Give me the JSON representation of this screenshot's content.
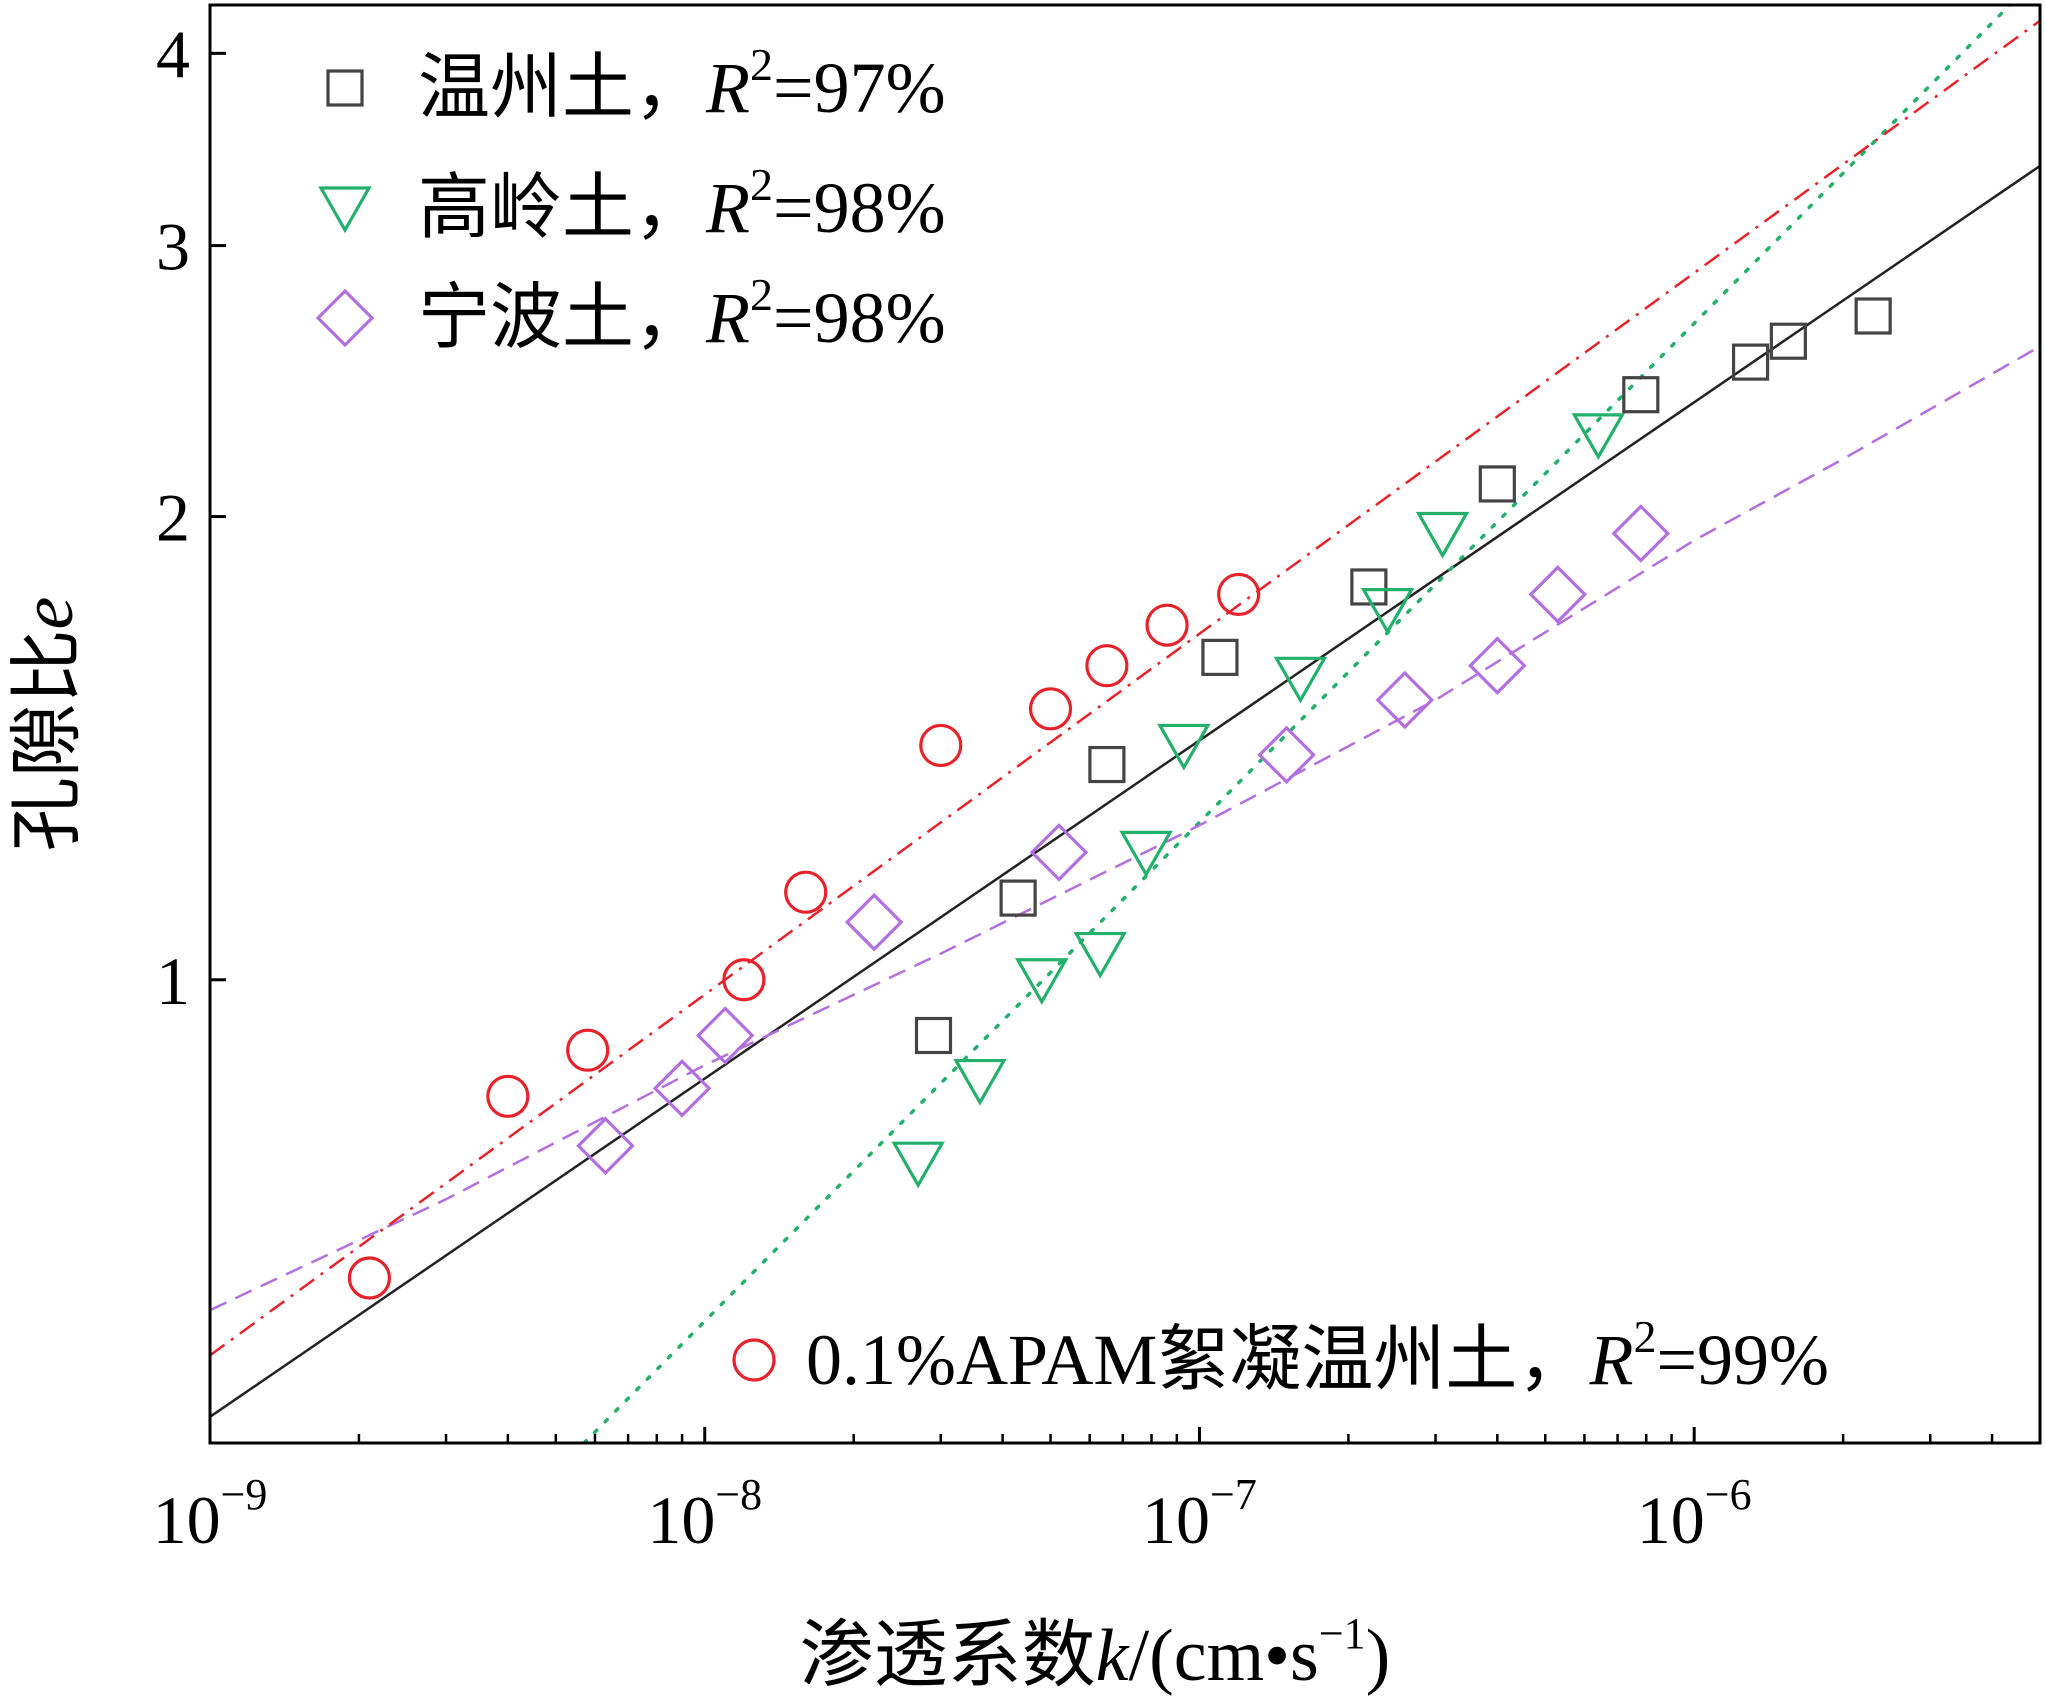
{
  "chart_data": {
    "type": "scatter",
    "title": "",
    "xlabel": {
      "prefix": "渗透系数",
      "var": "k",
      "unit_a": "/(cm•s",
      "unit_exp": "−1",
      "unit_b": ")"
    },
    "ylabel": {
      "prefix": "孔隙比",
      "var": "e"
    },
    "xscale": "log",
    "yscale": "log",
    "xlim": [
      1e-09,
      5e-06
    ],
    "ylim": [
      0.5,
      4.3
    ],
    "x_ticks": [
      {
        "value": 1e-09,
        "base": "10",
        "exp": "−9"
      },
      {
        "value": 1e-08,
        "base": "10",
        "exp": "−8"
      },
      {
        "value": 1e-07,
        "base": "10",
        "exp": "−7"
      },
      {
        "value": 1e-06,
        "base": "10",
        "exp": "−6"
      }
    ],
    "y_ticks": [
      {
        "value": 1,
        "label": "1"
      },
      {
        "value": 2,
        "label": "2"
      },
      {
        "value": 3,
        "label": "3"
      },
      {
        "value": 4,
        "label": "4"
      }
    ],
    "grid": false,
    "series": [
      {
        "name": "温州土",
        "r2_label": "R",
        "r2_exp": "2",
        "r2_value": "=97%",
        "marker": "square",
        "color": "#444444",
        "fit_style": "solid",
        "fit_color": "#222222",
        "points": [
          [
            2.9e-08,
            0.92
          ],
          [
            4.3e-08,
            1.13
          ],
          [
            6.5e-08,
            1.38
          ],
          [
            1.1e-07,
            1.62
          ],
          [
            2.2e-07,
            1.8
          ],
          [
            4e-07,
            2.1
          ],
          [
            7.8e-07,
            2.4
          ],
          [
            1.3e-06,
            2.52
          ],
          [
            1.55e-06,
            2.6
          ],
          [
            2.3e-06,
            2.7
          ]
        ],
        "fit": [
          [
            1e-09,
            0.52
          ],
          [
            5e-06,
            3.38
          ]
        ]
      },
      {
        "name": "高岭土",
        "r2_label": "R",
        "r2_exp": "2",
        "r2_value": "=98%",
        "marker": "triangle-down",
        "color": "#22b06a",
        "fit_style": "dotted",
        "fit_color": "#22b06a",
        "points": [
          [
            2.7e-08,
            0.76
          ],
          [
            3.6e-08,
            0.86
          ],
          [
            4.8e-08,
            1.0
          ],
          [
            6.3e-08,
            1.04
          ],
          [
            7.8e-08,
            1.21
          ],
          [
            9.3e-08,
            1.42
          ],
          [
            1.6e-07,
            1.57
          ],
          [
            2.4e-07,
            1.74
          ],
          [
            3.1e-07,
            1.95
          ],
          [
            6.4e-07,
            2.26
          ]
        ],
        "fit": [
          [
            5.7e-09,
            0.5
          ],
          [
            5e-06,
            4.5
          ]
        ]
      },
      {
        "name": "宁波土",
        "r2_label": "R",
        "r2_exp": "2",
        "r2_value": "=98%",
        "marker": "diamond",
        "color": "#b36fe0",
        "fit_style": "dashed",
        "fit_color": "#b36fe0",
        "points": [
          [
            6.3e-09,
            0.78
          ],
          [
            9e-09,
            0.85
          ],
          [
            1.1e-08,
            0.92
          ],
          [
            2.2e-08,
            1.09
          ],
          [
            5.2e-08,
            1.21
          ],
          [
            1.5e-07,
            1.4
          ],
          [
            2.6e-07,
            1.52
          ],
          [
            4e-07,
            1.6
          ],
          [
            5.3e-07,
            1.78
          ],
          [
            7.8e-07,
            1.95
          ]
        ],
        "fit": [
          [
            1e-09,
            0.61
          ],
          [
            3e-09,
            0.72
          ],
          [
            1e-08,
            0.88
          ],
          [
            3e-08,
            1.04
          ],
          [
            1e-07,
            1.26
          ],
          [
            3e-07,
            1.52
          ],
          [
            1e-06,
            1.93
          ],
          [
            2e-06,
            2.18
          ],
          [
            5e-06,
            2.58
          ]
        ]
      },
      {
        "name": "0.1%APAM絮凝温州土",
        "r2_label": "R",
        "r2_exp": "2",
        "r2_value": "=99%",
        "marker": "circle",
        "color": "#e8222a",
        "fit_style": "dashdot",
        "fit_color": "#e8222a",
        "points": [
          [
            2.1e-09,
            0.64
          ],
          [
            4e-09,
            0.84
          ],
          [
            5.8e-09,
            0.9
          ],
          [
            1.2e-08,
            1.0
          ],
          [
            1.6e-08,
            1.14
          ],
          [
            3e-08,
            1.42
          ],
          [
            5e-08,
            1.5
          ],
          [
            6.5e-08,
            1.6
          ],
          [
            8.6e-08,
            1.7
          ],
          [
            1.2e-07,
            1.78
          ]
        ],
        "fit": [
          [
            1e-09,
            0.57
          ],
          [
            5e-06,
            4.2
          ]
        ]
      }
    ],
    "legend": {
      "main_position": "top-left",
      "apam_position": "bottom-right",
      "separator": "，"
    }
  }
}
